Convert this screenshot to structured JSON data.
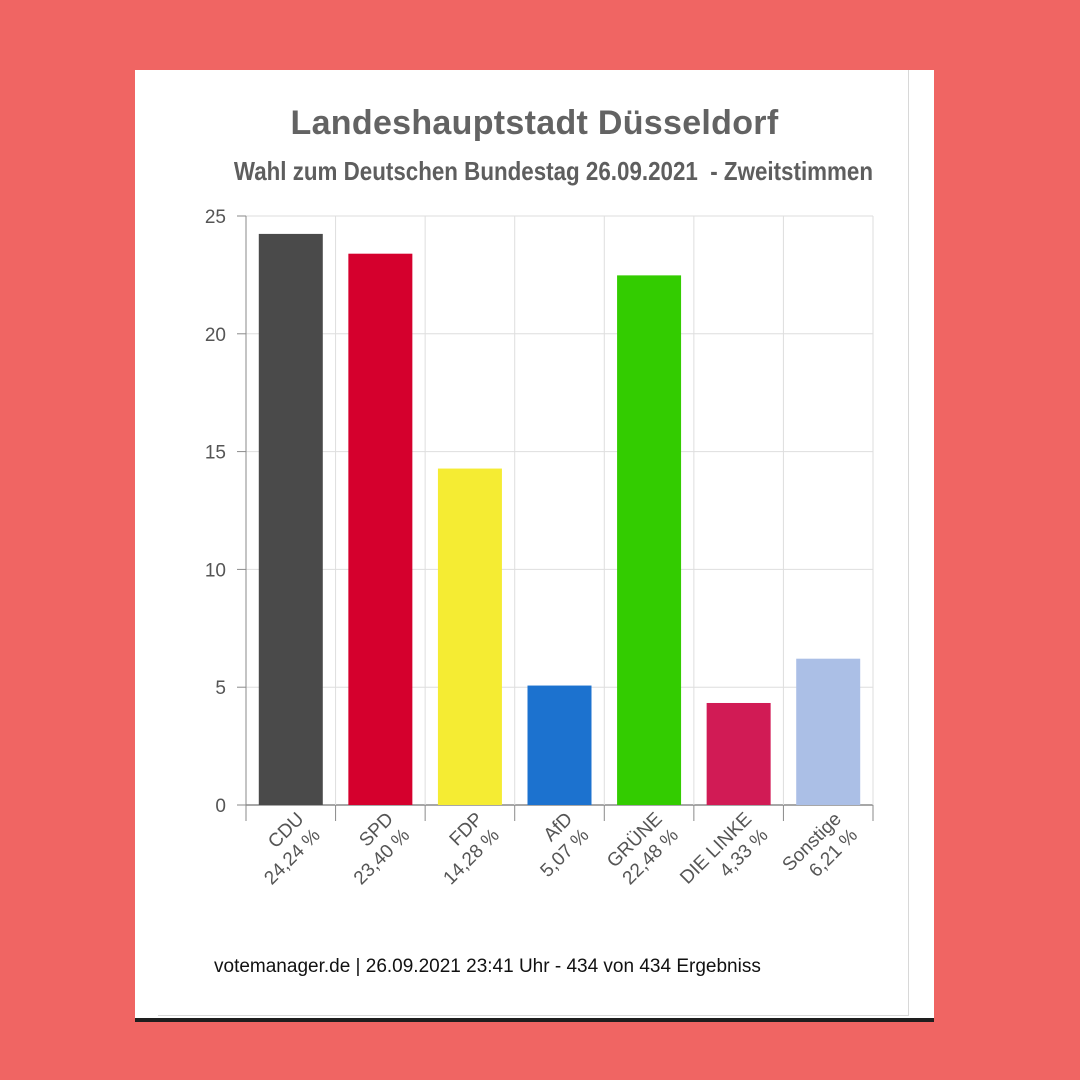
{
  "page": {
    "background_color": "#f06563",
    "footer": "votemanager.de | 26.09.2021 23:41 Uhr - 434 von 434 Ergebniss"
  },
  "chart_data": {
    "type": "bar",
    "title": "Landeshauptstadt Düsseldorf",
    "subtitle": "Wahl zum Deutschen Bundestag 26.09.2021  - Zweitstimmen",
    "xlabel": "",
    "ylabel": "",
    "ylim": [
      0,
      25
    ],
    "yticks": [
      0,
      5,
      10,
      15,
      20,
      25
    ],
    "grid": true,
    "legend": "none",
    "categories": [
      "CDU",
      "SPD",
      "FDP",
      "AfD",
      "GRÜNE",
      "DIE LINKE",
      "Sonstige"
    ],
    "value_labels": [
      "24,24 %",
      "23,40 %",
      "14,28 %",
      "5,07 %",
      "22,48 %",
      "4,33 %",
      "6,21 %"
    ],
    "values": [
      24.24,
      23.4,
      14.28,
      5.07,
      22.48,
      4.33,
      6.21
    ],
    "colors": [
      "#4a4a4a",
      "#d5002d",
      "#f5ec33",
      "#1c72cf",
      "#33cc00",
      "#d11b55",
      "#abbfe6"
    ]
  }
}
